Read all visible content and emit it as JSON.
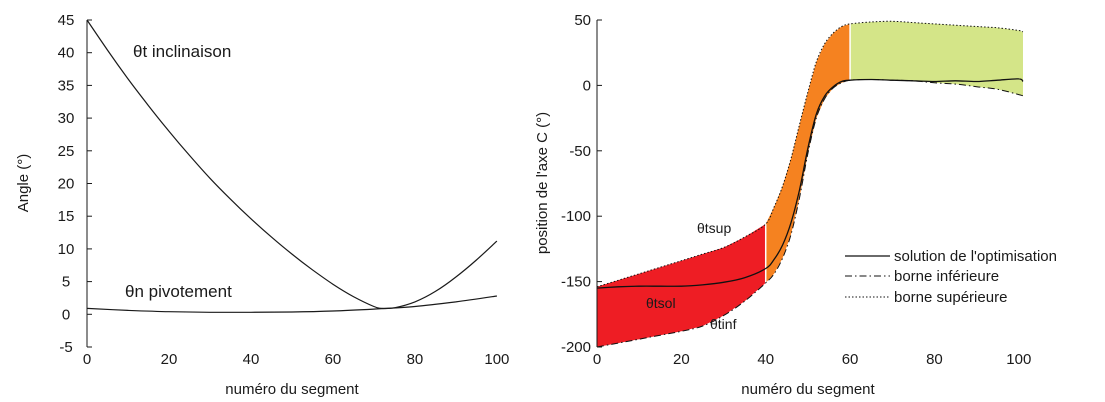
{
  "chart_data": [
    {
      "type": "line",
      "xlabel": "numéro du segment",
      "ylabel": "Angle (°)",
      "xlim": [
        0,
        101
      ],
      "ylim": [
        -5,
        45
      ],
      "xticks": [
        "0",
        "20",
        "40",
        "60",
        "80",
        "100"
      ],
      "yticks": [
        "-5",
        "0",
        "5",
        "10",
        "15",
        "20",
        "25",
        "30",
        "35",
        "40",
        "45"
      ],
      "grid": false,
      "annotations": [
        "θt inclinaison",
        "θn pivotement"
      ],
      "series": [
        {
          "name": "θt inclinaison",
          "x": [
            0,
            5,
            10,
            15,
            20,
            25,
            30,
            35,
            40,
            45,
            50,
            55,
            60,
            65,
            70,
            72,
            75,
            80,
            85,
            90,
            95,
            100
          ],
          "y": [
            45,
            40.4,
            36,
            31.9,
            28,
            24.3,
            20.8,
            17.6,
            14.6,
            11.8,
            9.2,
            6.8,
            4.6,
            2.7,
            1.2,
            0.9,
            1.0,
            1.9,
            3.5,
            5.7,
            8.3,
            11.2
          ]
        },
        {
          "name": "θn pivotement",
          "x": [
            0,
            10,
            20,
            30,
            40,
            50,
            60,
            70,
            80,
            90,
            100
          ],
          "y": [
            0.9,
            0.6,
            0.4,
            0.3,
            0.3,
            0.35,
            0.5,
            0.8,
            1.2,
            1.9,
            2.8
          ]
        }
      ]
    },
    {
      "type": "area",
      "xlabel": "numéro du segment",
      "ylabel": "position de l'axe C (°)",
      "xlim": [
        0,
        101
      ],
      "ylim": [
        -200,
        50
      ],
      "xticks": [
        "0",
        "20",
        "40",
        "60",
        "80",
        "100"
      ],
      "yticks": [
        "-200",
        "-150",
        "-100",
        "-50",
        "0",
        "50"
      ],
      "grid": false,
      "legend_position": "center-right",
      "annotations": [
        "θtsup",
        "θtsol",
        "θtinf"
      ],
      "x": [
        0,
        5,
        10,
        15,
        20,
        25,
        30,
        35,
        40,
        42,
        44,
        46,
        48,
        50,
        52,
        54,
        56,
        58,
        60,
        65,
        70,
        75,
        80,
        85,
        90,
        95,
        100,
        101
      ],
      "series": [
        {
          "name": "solution de l'optimisation",
          "style": "solid",
          "y": [
            -155,
            -154,
            -153.5,
            -153.5,
            -153.5,
            -152.5,
            -150.5,
            -147,
            -140,
            -133,
            -122,
            -105,
            -80,
            -48,
            -22,
            -8,
            -1,
            3,
            4,
            4.5,
            4,
            3.5,
            3,
            3.5,
            3,
            4,
            5,
            3
          ]
        },
        {
          "name": "borne inférieure",
          "style": "dashdot",
          "y": [
            -200,
            -197,
            -194,
            -191,
            -188,
            -184,
            -176,
            -165,
            -151,
            -144,
            -132,
            -114,
            -86,
            -52,
            -25,
            -10,
            -2,
            2,
            4,
            4.5,
            4,
            3.5,
            2,
            1,
            -1,
            -3,
            -7,
            -8
          ]
        },
        {
          "name": "borne supérieure",
          "style": "dotted",
          "y": [
            -154,
            -149,
            -144,
            -139,
            -134,
            -129,
            -124,
            -116,
            -106,
            -93,
            -77,
            -56,
            -30,
            -5,
            18,
            32,
            40,
            45,
            47,
            48.5,
            49,
            48,
            47,
            46,
            45,
            44,
            42,
            41
          ]
        }
      ],
      "region_splits": [
        40,
        60
      ],
      "region_colors": [
        "#ee1d24",
        "#f58220",
        "#d4e588"
      ],
      "line_color": "#111111"
    }
  ]
}
